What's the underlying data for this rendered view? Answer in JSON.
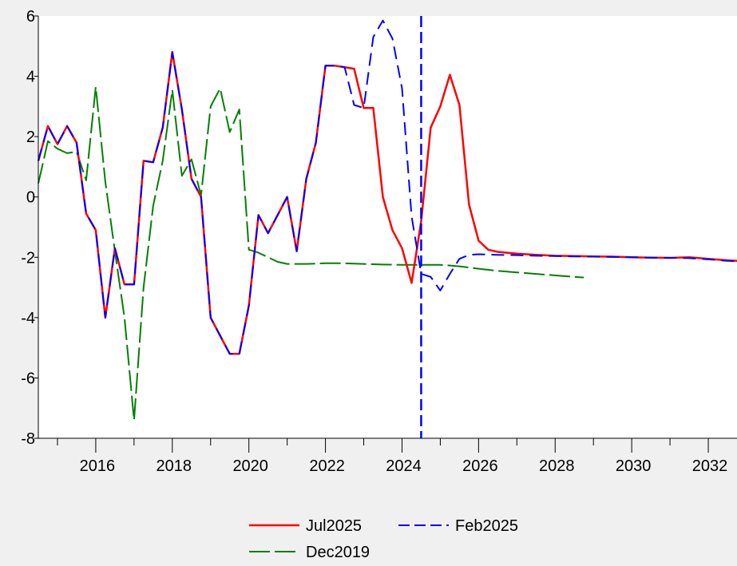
{
  "chart_data": {
    "type": "line",
    "title": "",
    "xlabel": "",
    "ylabel": "",
    "xlim": [
      2014.5,
      2032.75
    ],
    "ylim": [
      -8,
      6
    ],
    "yticks": [
      6,
      4,
      2,
      0,
      -2,
      -4,
      -6,
      -8
    ],
    "xticks": [
      2016,
      2018,
      2020,
      2022,
      2024,
      2026,
      2028,
      2030,
      2032
    ],
    "grid": false,
    "legend_position": "bottom-center",
    "vertical_marker": {
      "x": 2024.5,
      "color": "#0000ff",
      "style": "dashed"
    },
    "series": [
      {
        "name": "Jul2025",
        "color": "#ff0000",
        "style": "solid",
        "points": [
          [
            2014.5,
            1.2
          ],
          [
            2014.75,
            2.35
          ],
          [
            2015.0,
            1.75
          ],
          [
            2015.25,
            2.35
          ],
          [
            2015.5,
            1.8
          ],
          [
            2015.75,
            -0.55
          ],
          [
            2016.0,
            -1.1
          ],
          [
            2016.25,
            -4.0
          ],
          [
            2016.5,
            -1.7
          ],
          [
            2016.75,
            -2.9
          ],
          [
            2017.0,
            -2.9
          ],
          [
            2017.25,
            1.2
          ],
          [
            2017.5,
            1.15
          ],
          [
            2017.75,
            2.3
          ],
          [
            2018.0,
            4.8
          ],
          [
            2018.25,
            2.9
          ],
          [
            2018.5,
            0.6
          ],
          [
            2018.75,
            0.0
          ],
          [
            2019.0,
            -4.0
          ],
          [
            2019.25,
            -4.6
          ],
          [
            2019.5,
            -5.2
          ],
          [
            2019.75,
            -5.2
          ],
          [
            2020.0,
            -3.6
          ],
          [
            2020.25,
            -0.6
          ],
          [
            2020.5,
            -1.2
          ],
          [
            2020.75,
            -0.6
          ],
          [
            2021.0,
            0.0
          ],
          [
            2021.25,
            -1.8
          ],
          [
            2021.5,
            0.6
          ],
          [
            2021.75,
            1.8
          ],
          [
            2022.0,
            4.35
          ],
          [
            2022.25,
            4.35
          ],
          [
            2022.5,
            4.3
          ],
          [
            2022.75,
            4.25
          ],
          [
            2023.0,
            2.95
          ],
          [
            2023.25,
            2.95
          ],
          [
            2023.5,
            0.0
          ],
          [
            2023.75,
            -1.1
          ],
          [
            2024.0,
            -1.7
          ],
          [
            2024.25,
            -2.85
          ],
          [
            2024.5,
            -0.8
          ],
          [
            2024.75,
            2.3
          ],
          [
            2025.0,
            3.0
          ],
          [
            2025.25,
            4.05
          ],
          [
            2025.5,
            3.05
          ],
          [
            2025.75,
            -0.25
          ],
          [
            2026.0,
            -1.45
          ],
          [
            2026.25,
            -1.75
          ],
          [
            2026.5,
            -1.82
          ],
          [
            2026.75,
            -1.85
          ],
          [
            2027.0,
            -1.88
          ],
          [
            2027.5,
            -1.92
          ],
          [
            2028.0,
            -1.95
          ],
          [
            2028.5,
            -1.96
          ],
          [
            2029.0,
            -1.97
          ],
          [
            2029.5,
            -1.98
          ],
          [
            2030.0,
            -2.0
          ],
          [
            2030.5,
            -2.01
          ],
          [
            2031.0,
            -2.02
          ],
          [
            2031.5,
            -2.0
          ],
          [
            2032.0,
            -2.05
          ],
          [
            2032.5,
            -2.1
          ],
          [
            2032.75,
            -2.12
          ]
        ]
      },
      {
        "name": "Feb2025",
        "color": "#0000ff",
        "style": "dashed",
        "points": [
          [
            2014.5,
            1.2
          ],
          [
            2014.75,
            2.35
          ],
          [
            2015.0,
            1.75
          ],
          [
            2015.25,
            2.35
          ],
          [
            2015.5,
            1.8
          ],
          [
            2015.75,
            -0.55
          ],
          [
            2016.0,
            -1.1
          ],
          [
            2016.25,
            -4.0
          ],
          [
            2016.5,
            -1.7
          ],
          [
            2016.75,
            -2.9
          ],
          [
            2017.0,
            -2.9
          ],
          [
            2017.25,
            1.2
          ],
          [
            2017.5,
            1.15
          ],
          [
            2017.75,
            2.3
          ],
          [
            2018.0,
            4.8
          ],
          [
            2018.25,
            2.9
          ],
          [
            2018.5,
            0.6
          ],
          [
            2018.75,
            0.0
          ],
          [
            2019.0,
            -4.0
          ],
          [
            2019.25,
            -4.6
          ],
          [
            2019.5,
            -5.2
          ],
          [
            2019.75,
            -5.2
          ],
          [
            2020.0,
            -3.6
          ],
          [
            2020.25,
            -0.6
          ],
          [
            2020.5,
            -1.2
          ],
          [
            2020.75,
            -0.6
          ],
          [
            2021.0,
            0.0
          ],
          [
            2021.25,
            -1.8
          ],
          [
            2021.5,
            0.6
          ],
          [
            2021.75,
            1.8
          ],
          [
            2022.0,
            4.35
          ],
          [
            2022.25,
            4.35
          ],
          [
            2022.5,
            4.3
          ],
          [
            2022.75,
            3.05
          ],
          [
            2023.0,
            2.95
          ],
          [
            2023.25,
            5.3
          ],
          [
            2023.5,
            5.85
          ],
          [
            2023.75,
            5.25
          ],
          [
            2024.0,
            3.6
          ],
          [
            2024.25,
            -0.65
          ],
          [
            2024.5,
            -2.55
          ],
          [
            2024.75,
            -2.65
          ],
          [
            2025.0,
            -3.1
          ],
          [
            2025.25,
            -2.55
          ],
          [
            2025.5,
            -2.05
          ],
          [
            2025.75,
            -1.92
          ],
          [
            2026.0,
            -1.9
          ],
          [
            2026.5,
            -1.92
          ],
          [
            2027.0,
            -1.93
          ],
          [
            2027.5,
            -1.95
          ],
          [
            2028.0,
            -1.96
          ],
          [
            2028.5,
            -1.97
          ],
          [
            2029.0,
            -1.98
          ],
          [
            2029.5,
            -1.99
          ],
          [
            2030.0,
            -2.0
          ],
          [
            2030.5,
            -2.01
          ],
          [
            2031.0,
            -2.02
          ],
          [
            2031.5,
            -2.03
          ],
          [
            2032.0,
            -2.07
          ],
          [
            2032.5,
            -2.12
          ],
          [
            2032.75,
            -2.13
          ]
        ]
      },
      {
        "name": "Dec2019",
        "color": "#008000",
        "style": "longdash",
        "points": [
          [
            2014.5,
            0.45
          ],
          [
            2014.75,
            1.85
          ],
          [
            2015.0,
            1.6
          ],
          [
            2015.25,
            1.45
          ],
          [
            2015.5,
            1.5
          ],
          [
            2015.75,
            0.55
          ],
          [
            2016.0,
            3.65
          ],
          [
            2016.25,
            0.5
          ],
          [
            2016.5,
            -1.8
          ],
          [
            2016.75,
            -4.0
          ],
          [
            2017.0,
            -7.4
          ],
          [
            2017.25,
            -3.0
          ],
          [
            2017.5,
            -0.3
          ],
          [
            2017.75,
            1.2
          ],
          [
            2018.0,
            3.55
          ],
          [
            2018.25,
            0.7
          ],
          [
            2018.5,
            1.25
          ],
          [
            2018.75,
            0.05
          ],
          [
            2019.0,
            3.0
          ],
          [
            2019.25,
            3.6
          ],
          [
            2019.5,
            2.15
          ],
          [
            2019.75,
            2.9
          ],
          [
            2020.0,
            -1.75
          ],
          [
            2020.25,
            -1.85
          ],
          [
            2020.5,
            -2.0
          ],
          [
            2020.75,
            -2.15
          ],
          [
            2021.0,
            -2.22
          ],
          [
            2021.5,
            -2.22
          ],
          [
            2022.0,
            -2.2
          ],
          [
            2022.5,
            -2.2
          ],
          [
            2023.0,
            -2.22
          ],
          [
            2023.5,
            -2.24
          ],
          [
            2024.0,
            -2.25
          ],
          [
            2024.5,
            -2.25
          ],
          [
            2025.0,
            -2.25
          ],
          [
            2025.5,
            -2.3
          ],
          [
            2026.0,
            -2.38
          ],
          [
            2026.5,
            -2.45
          ],
          [
            2027.0,
            -2.5
          ],
          [
            2027.5,
            -2.55
          ],
          [
            2028.0,
            -2.6
          ],
          [
            2028.5,
            -2.65
          ],
          [
            2028.75,
            -2.67
          ]
        ]
      }
    ]
  }
}
